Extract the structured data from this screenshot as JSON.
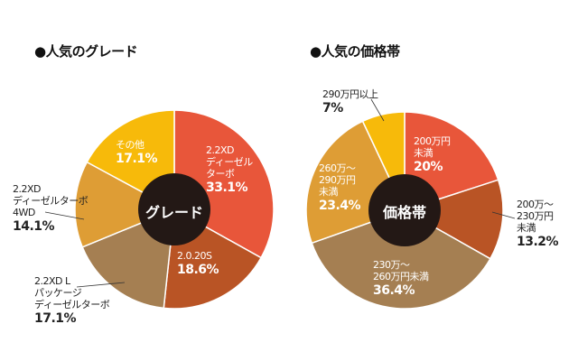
{
  "colors": [
    "#E8563A",
    "#B95425",
    "#A57F52",
    "#DE9D35",
    "#F7BA0A"
  ],
  "chart_data": [
    {
      "type": "pie",
      "title": "●人気のグレード",
      "center_label": "グレード",
      "slices": [
        {
          "label": "2.2XD ディーゼル ターボ",
          "lines": [
            "2.2XD",
            "ディーゼル",
            "ターボ"
          ],
          "value": 33.1,
          "text": "33.1%"
        },
        {
          "label": "2.0.20S",
          "lines": [
            "2.0.20S"
          ],
          "value": 18.6,
          "text": "18.6%"
        },
        {
          "label": "2.2XD L パッケージ ディーゼルターボ",
          "lines": [
            "2.2XD L",
            "パッケージ",
            "ディーゼルターボ"
          ],
          "value": 17.1,
          "text": "17.1%"
        },
        {
          "label": "2.2XD ディーゼルターボ 4WD",
          "lines": [
            "2.2XD",
            "ディーゼルターボ",
            "4WD"
          ],
          "value": 14.1,
          "text": "14.1%"
        },
        {
          "label": "その他",
          "lines": [
            "その他"
          ],
          "value": 17.1,
          "text": "17.1%"
        }
      ]
    },
    {
      "type": "pie",
      "title": "●人気の価格帯",
      "center_label": "価格帯",
      "slices": [
        {
          "label": "200万円未満",
          "lines": [
            "200万円",
            "未満"
          ],
          "value": 20,
          "text": "20%"
        },
        {
          "label": "200万〜230万円未満",
          "lines": [
            "200万〜",
            "230万円",
            "未満"
          ],
          "value": 13.2,
          "text": "13.2%"
        },
        {
          "label": "230万〜260万円未満",
          "lines": [
            "230万〜",
            "260万円未満"
          ],
          "value": 36.4,
          "text": "36.4%"
        },
        {
          "label": "260万〜290万円未満",
          "lines": [
            "260万〜",
            "290万円",
            "未満"
          ],
          "value": 23.4,
          "text": "23.4%"
        },
        {
          "label": "290万円以上",
          "lines": [
            "290万円以上"
          ],
          "value": 7,
          "text": "7%"
        }
      ]
    }
  ]
}
